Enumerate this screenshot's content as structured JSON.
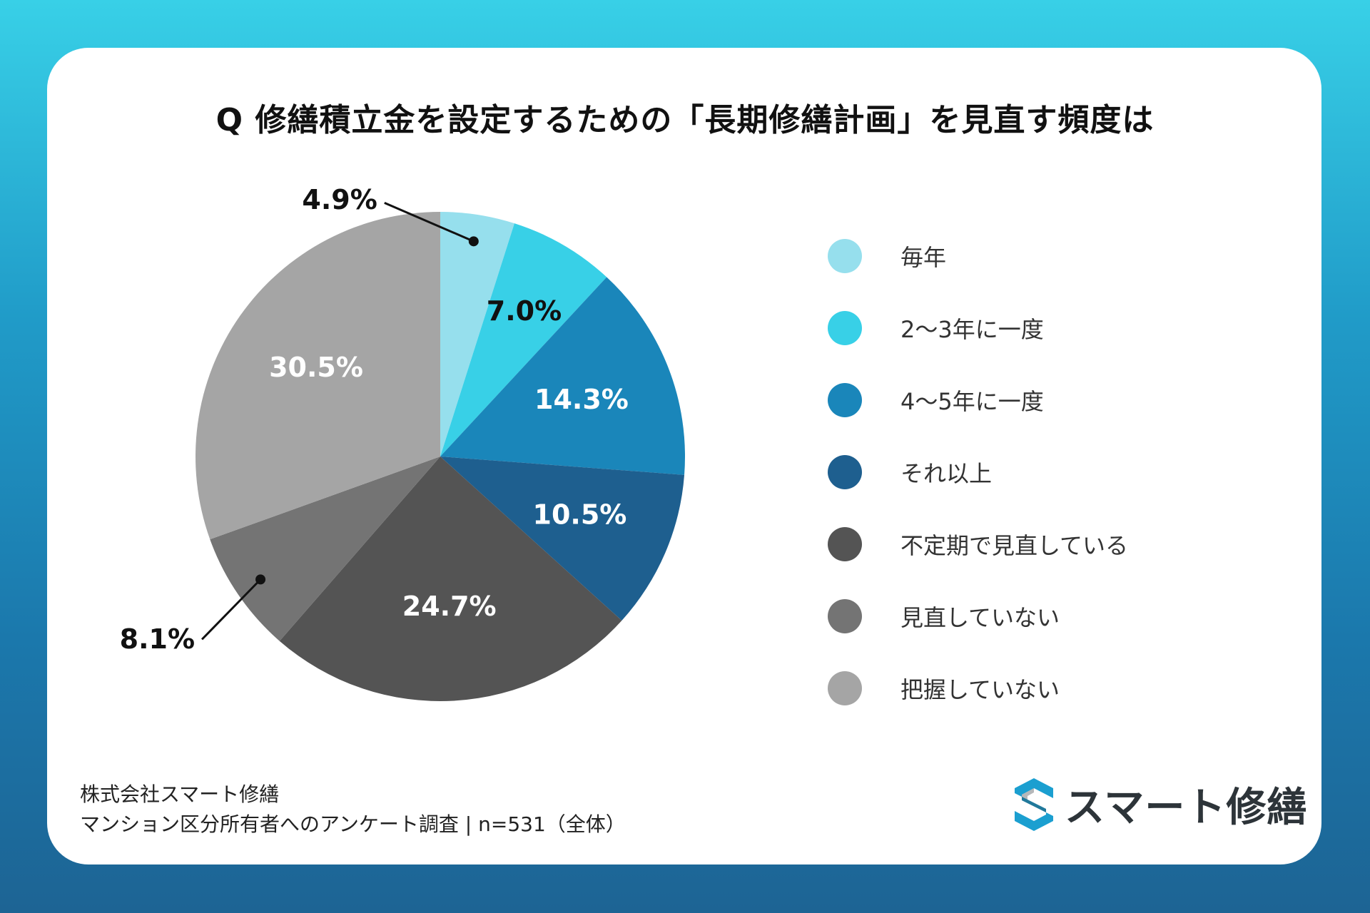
{
  "title": "Q 修繕積立金を設定するための「長期修繕計画」を見直す頻度は",
  "chart_data": {
    "type": "pie",
    "start_angle": "12 o'clock",
    "direction": "clockwise",
    "slices": [
      {
        "label": "毎年",
        "value": 4.9,
        "value_label": "4.9%",
        "color": "#96dfed",
        "label_position": "outside",
        "label_color": "#111111"
      },
      {
        "label": "2〜3年に一度",
        "value": 7.0,
        "value_label": "7.0%",
        "color": "#38d0e7",
        "label_position": "inside",
        "label_color": "#111111"
      },
      {
        "label": "4〜5年に一度",
        "value": 14.3,
        "value_label": "14.3%",
        "color": "#1a86ba",
        "label_position": "inside",
        "label_color": "#ffffff"
      },
      {
        "label": "それ以上",
        "value": 10.5,
        "value_label": "10.5%",
        "color": "#1e5f8f",
        "label_position": "inside",
        "label_color": "#ffffff"
      },
      {
        "label": "不定期で見直している",
        "value": 24.7,
        "value_label": "24.7%",
        "color": "#545454",
        "label_position": "inside",
        "label_color": "#ffffff"
      },
      {
        "label": "見直していない",
        "value": 8.1,
        "value_label": "8.1%",
        "color": "#747474",
        "label_position": "outside",
        "label_color": "#111111"
      },
      {
        "label": "把握していない",
        "value": 30.5,
        "value_label": "30.5%",
        "color": "#a5a5a5",
        "label_position": "inside",
        "label_color": "#ffffff"
      }
    ],
    "legend_position": "right"
  },
  "footer": {
    "company": "株式会社スマート修繕",
    "survey": "マンション区分所有者へのアンケート調査 | n=531（全体）"
  },
  "logo": {
    "text": "スマート修繕",
    "icon": "s-logo-icon",
    "colors": [
      "#1b9fd0",
      "#2d3439"
    ]
  }
}
